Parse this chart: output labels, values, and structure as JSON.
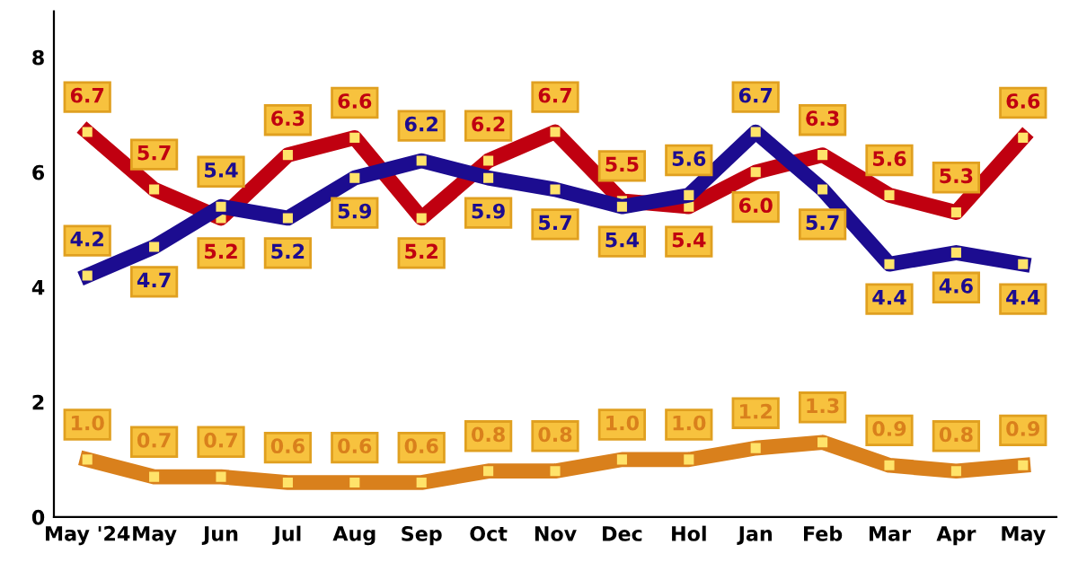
{
  "chart_data": {
    "type": "line",
    "categories": [
      "May '24",
      "May",
      "Jun",
      "Jul",
      "Aug",
      "Sep",
      "Oct",
      "Nov",
      "Dec",
      "Hol",
      "Jan",
      "Feb",
      "Mar",
      "Apr",
      "May"
    ],
    "series": [
      {
        "color": "#c00010",
        "values": [
          6.7,
          5.7,
          5.2,
          6.3,
          6.6,
          5.2,
          6.2,
          6.7,
          5.5,
          5.4,
          6.0,
          6.3,
          5.6,
          5.3,
          6.6
        ],
        "value_labels": [
          "6.7",
          "5.7",
          "5.2",
          "6.3",
          "6.6",
          "5.2",
          "6.2",
          "6.7",
          "5.5",
          "5.4",
          "6.0",
          "6.3",
          "5.6",
          "5.3",
          "6.6"
        ]
      },
      {
        "color": "#1c0c90",
        "values": [
          4.2,
          4.7,
          5.4,
          5.2,
          5.9,
          6.2,
          5.9,
          5.7,
          5.4,
          5.6,
          6.7,
          5.7,
          4.4,
          4.6,
          4.4
        ],
        "value_labels": [
          "4.2",
          "4.7",
          "5.4",
          "5.2",
          "5.9",
          "6.2",
          "5.9",
          "5.7",
          "5.4",
          "5.6",
          "6.7",
          "5.7",
          "4.4",
          "4.6",
          "4.4"
        ]
      },
      {
        "color": "#d9801c",
        "values": [
          1.0,
          0.7,
          0.7,
          0.6,
          0.6,
          0.6,
          0.8,
          0.8,
          1.0,
          1.0,
          1.2,
          1.3,
          0.9,
          0.8,
          0.9
        ],
        "value_labels": [
          "1.0",
          "0.7",
          "0.7",
          "0.6",
          "0.6",
          "0.6",
          "0.8",
          "0.8",
          "1.0",
          "1.0",
          "1.2",
          "1.3",
          "0.9",
          "0.8",
          "0.9"
        ]
      }
    ],
    "ylim": [
      0,
      8.8
    ],
    "yticks": [
      0,
      2,
      4,
      6,
      8
    ],
    "grid": false,
    "marker": "square",
    "line_style": "solid"
  }
}
